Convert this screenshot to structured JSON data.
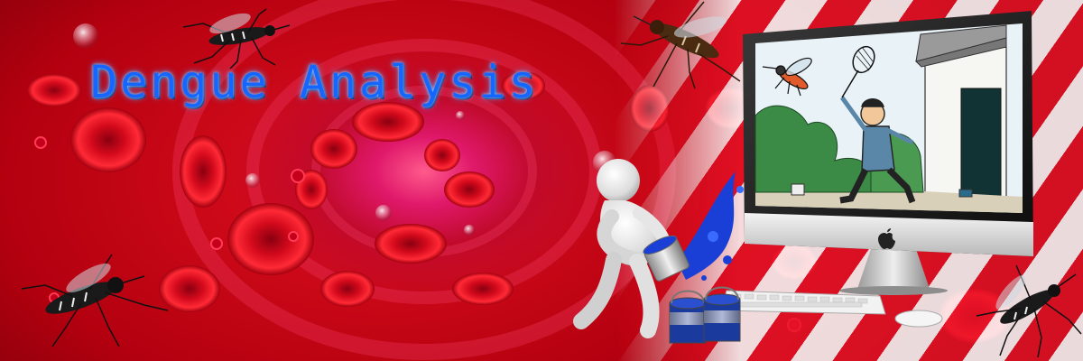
{
  "banner": {
    "title": "Dengue Analysis",
    "colors": {
      "background": "#b3000f",
      "title": "#1565ff",
      "accent_white": "#ffffff"
    },
    "icons": [
      "mosquito-icon",
      "apple-logo-icon",
      "blood-cell-icon",
      "virus-icon",
      "paint-bucket-icon"
    ]
  }
}
